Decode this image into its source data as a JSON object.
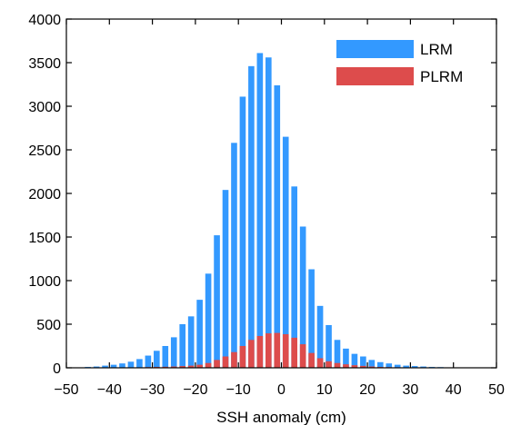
{
  "chart_data": {
    "type": "bar",
    "xlabel": "SSH anomaly (cm)",
    "ylabel": "",
    "xlim": [
      -50,
      50
    ],
    "ylim": [
      0,
      4000
    ],
    "x_ticks": [
      -50,
      -40,
      -30,
      -20,
      -10,
      0,
      10,
      20,
      30,
      40,
      50
    ],
    "x_tick_labels": [
      "−50",
      "−40",
      "−30",
      "−20",
      "−10",
      "0",
      "10",
      "20",
      "30",
      "40",
      "50"
    ],
    "y_ticks": [
      0,
      500,
      1000,
      1500,
      2000,
      2500,
      3000,
      3500,
      4000
    ],
    "y_tick_labels": [
      "0",
      "500",
      "1000",
      "1500",
      "2000",
      "2500",
      "3000",
      "3500",
      "4000"
    ],
    "grid": false,
    "legend_position": "top-right",
    "bin_width": 2,
    "bin_centers": [
      -47,
      -45,
      -43,
      -41,
      -39,
      -37,
      -35,
      -33,
      -31,
      -29,
      -27,
      -25,
      -23,
      -21,
      -19,
      -17,
      -15,
      -13,
      -11,
      -9,
      -7,
      -5,
      -3,
      -1,
      1,
      3,
      5,
      7,
      9,
      11,
      13,
      15,
      17,
      19,
      21,
      23,
      25,
      27,
      29,
      31,
      33,
      35,
      37,
      39,
      41,
      43,
      45,
      47
    ],
    "series": [
      {
        "name": "LRM",
        "color": "#3399ff",
        "values": [
          5,
          10,
          15,
          25,
          35,
          50,
          70,
          100,
          140,
          195,
          250,
          350,
          500,
          590,
          780,
          1080,
          1520,
          2040,
          2580,
          3110,
          3460,
          3610,
          3560,
          3240,
          2650,
          2080,
          1620,
          1130,
          710,
          490,
          320,
          220,
          160,
          130,
          90,
          65,
          50,
          35,
          25,
          20,
          15,
          10,
          8,
          5,
          4,
          3,
          2,
          1
        ]
      },
      {
        "name": "PLRM",
        "color": "#dd4c4c",
        "values": [
          1,
          1,
          2,
          2,
          3,
          3,
          5,
          5,
          8,
          10,
          12,
          15,
          20,
          25,
          35,
          55,
          90,
          130,
          180,
          250,
          320,
          365,
          395,
          400,
          385,
          345,
          270,
          170,
          110,
          75,
          55,
          40,
          30,
          22,
          15,
          10,
          8,
          6,
          5,
          4,
          3,
          3,
          2,
          2,
          1,
          1,
          1,
          1
        ]
      }
    ]
  }
}
